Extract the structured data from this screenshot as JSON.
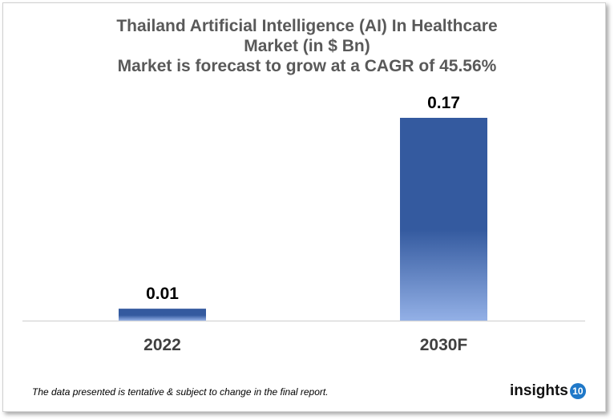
{
  "chart_data": {
    "type": "bar",
    "title": [
      "Thailand Artificial Intelligence (AI) In Healthcare",
      "Market  (in $ Bn)",
      "Market is forecast to grow at a CAGR of 45.56%"
    ],
    "categories": [
      "2022",
      "2030F"
    ],
    "values": [
      0.01,
      0.17
    ],
    "data_labels": [
      "0.01",
      "0.17"
    ],
    "xlabel": "",
    "ylabel": "",
    "ylim": [
      0,
      0.17
    ],
    "grid": false,
    "colors": {
      "bar_top": "#345a9f",
      "bar_bottom": "#93b0e6",
      "axis": "#d9d9d9"
    }
  },
  "footnote": "The data presented is tentative & subject to change in the final report.",
  "logo": {
    "text": "insights",
    "badge": "10",
    "color": "#1f78c8"
  }
}
